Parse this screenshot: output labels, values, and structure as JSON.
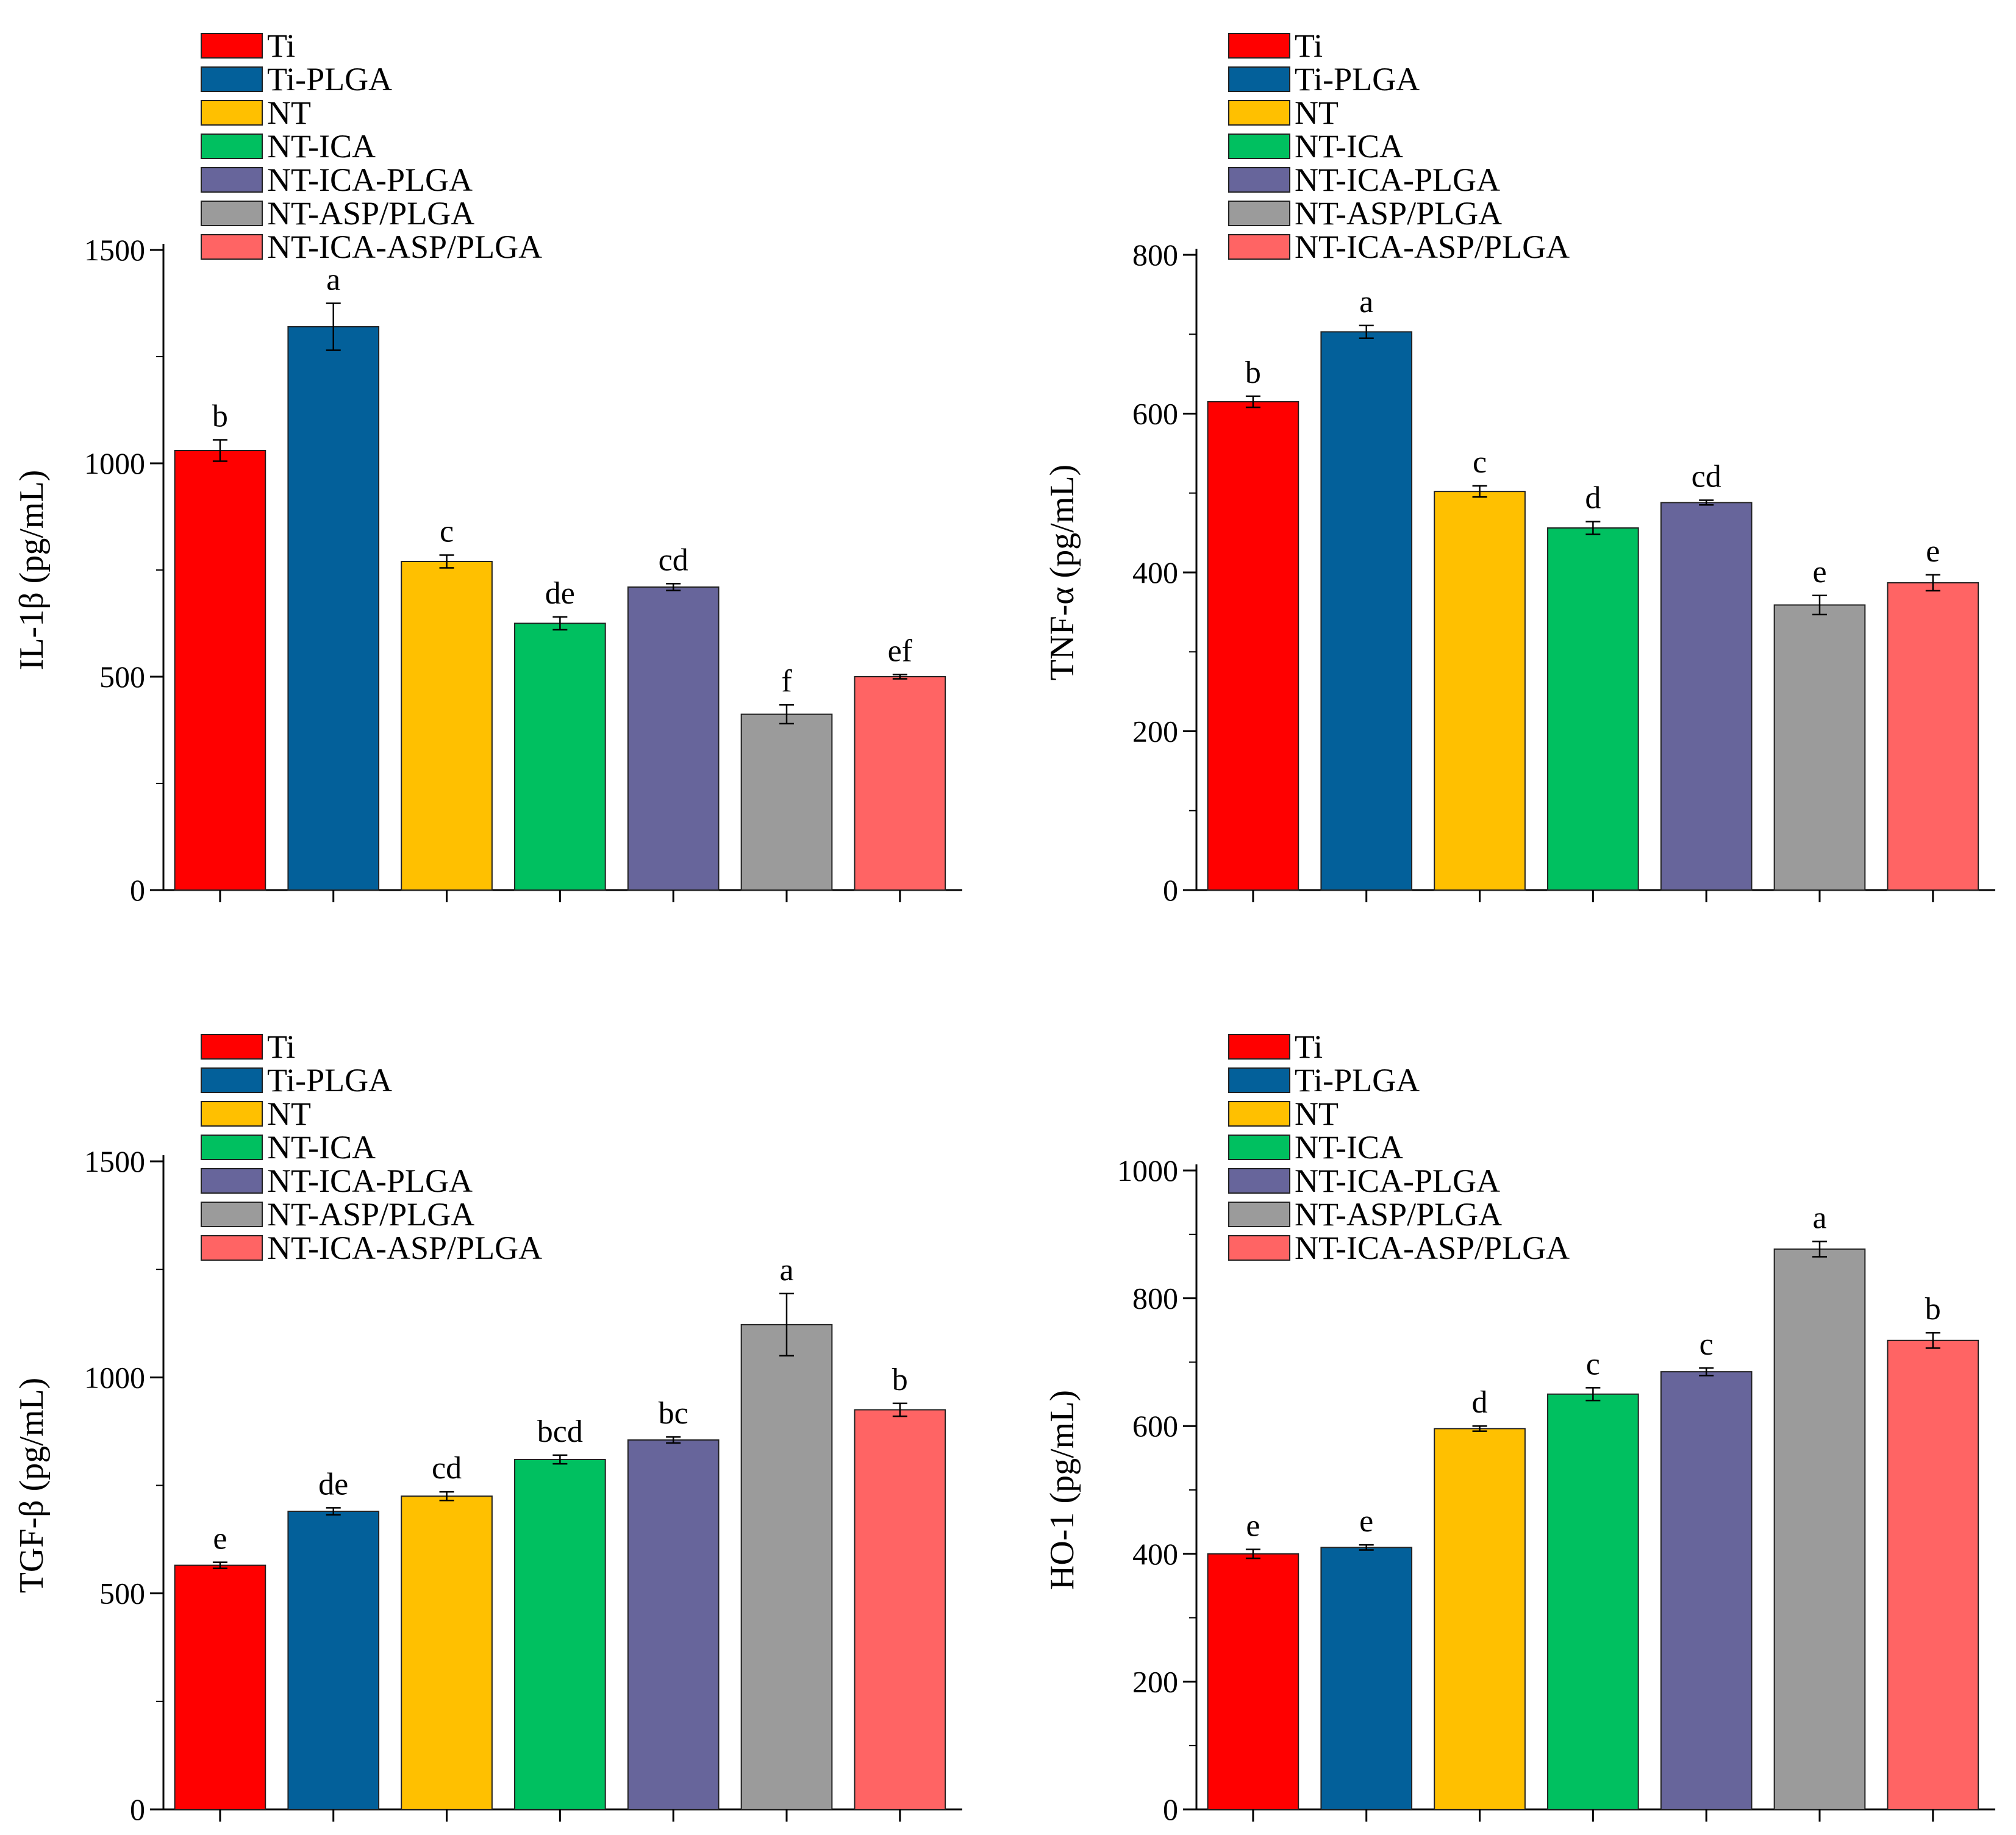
{
  "legend": [
    "Ti",
    "Ti-PLGA",
    "NT",
    "NT-ICA",
    "NT-ICA-PLGA",
    "NT-ASP/PLGA",
    "NT-ICA-ASP/PLGA"
  ],
  "colors": [
    "#ff0000",
    "#03609a",
    "#ffc000",
    "#00c060",
    "#67659b",
    "#9b9b9b",
    "#ff6464"
  ],
  "chart_data": [
    {
      "type": "bar",
      "title": "",
      "xlabel": "",
      "ylabel": "IL-1β (pg/mL)",
      "categories": [
        "Ti",
        "Ti-PLGA",
        "NT",
        "NT-ICA",
        "NT-ICA-PLGA",
        "NT-ASP/PLGA",
        "NT-ICA-ASP/PLGA"
      ],
      "values": [
        1030,
        1320,
        770,
        625,
        710,
        412,
        500
      ],
      "errors": [
        25,
        55,
        15,
        15,
        8,
        22,
        5
      ],
      "labels": [
        "b",
        "a",
        "c",
        "de",
        "cd",
        "f",
        "ef"
      ],
      "ylim": [
        0,
        1500
      ],
      "yticks": [
        0,
        500,
        1000,
        1500
      ],
      "yminor_step": 250
    },
    {
      "type": "bar",
      "title": "",
      "xlabel": "",
      "ylabel": "TNF-α (pg/mL)",
      "categories": [
        "Ti",
        "Ti-PLGA",
        "NT",
        "NT-ICA",
        "NT-ICA-PLGA",
        "NT-ASP/PLGA",
        "NT-ICA-ASP/PLGA"
      ],
      "values": [
        615,
        703,
        502,
        456,
        488,
        359,
        387
      ],
      "errors": [
        7,
        8,
        7,
        8,
        3,
        12,
        10
      ],
      "labels": [
        "b",
        "a",
        "c",
        "d",
        "cd",
        "e",
        "e"
      ],
      "ylim": [
        0,
        800
      ],
      "yticks": [
        0,
        200,
        400,
        600,
        800
      ],
      "yminor_step": 100
    },
    {
      "type": "bar",
      "title": "",
      "xlabel": "",
      "ylabel": "TGF-β (pg/mL)",
      "categories": [
        "Ti",
        "Ti-PLGA",
        "NT",
        "NT-ICA",
        "NT-ICA-PLGA",
        "NT-ASP/PLGA",
        "NT-ICA-ASP/PLGA"
      ],
      "values": [
        565,
        690,
        725,
        810,
        855,
        1122,
        925
      ],
      "errors": [
        7,
        8,
        10,
        10,
        7,
        72,
        15
      ],
      "labels": [
        "e",
        "de",
        "cd",
        "bcd",
        "bc",
        "a",
        "b"
      ],
      "ylim": [
        0,
        1500
      ],
      "yticks": [
        0,
        500,
        1000,
        1500
      ],
      "yminor_step": 250
    },
    {
      "type": "bar",
      "title": "",
      "xlabel": "",
      "ylabel": "HO-1 (pg/mL)",
      "categories": [
        "Ti",
        "Ti-PLGA",
        "NT",
        "NT-ICA",
        "NT-ICA-PLGA",
        "NT-ASP/PLGA",
        "NT-ICA-ASP/PLGA"
      ],
      "values": [
        400,
        410,
        596,
        650,
        685,
        877,
        734
      ],
      "errors": [
        7,
        4,
        4,
        10,
        6,
        12,
        12
      ],
      "labels": [
        "e",
        "e",
        "d",
        "c",
        "c",
        "a",
        "b"
      ],
      "ylim": [
        0,
        1000
      ],
      "yticks": [
        0,
        200,
        400,
        600,
        800,
        1000
      ],
      "yminor_step": 100
    }
  ]
}
